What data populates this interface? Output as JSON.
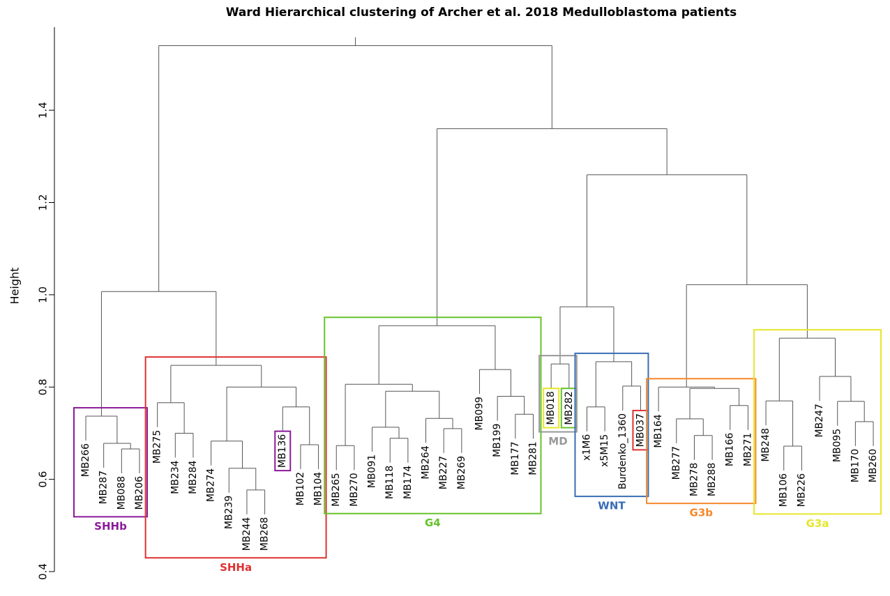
{
  "chart_data": {
    "type": "dendrogram",
    "title": "Ward Hierarchical clustering of Archer et al. 2018 Medulloblastoma patients",
    "y_label": "Height",
    "ylim": [
      0.4,
      1.58
    ],
    "yticks": [
      0.4,
      0.6,
      0.8,
      {
        "value": 1,
        "label": "1.0"
      },
      1.2,
      1.4
    ],
    "leaves": [
      "MB266",
      "MB287",
      "MB088",
      "MB206",
      "MB275",
      "MB234",
      "MB284",
      "MB274",
      "MB239",
      "MB244",
      "MB268",
      "MB136",
      "MB102",
      "MB104",
      "MB265",
      "MB270",
      "MB091",
      "MB118",
      "MB174",
      "MB264",
      "MB227",
      "MB269",
      "MB099",
      "MB199",
      "MB177",
      "MB281",
      "MB018",
      "MB282",
      "x1M6",
      "x5M15",
      "Burdenko_1360",
      "MB037",
      "MB164",
      "MB277",
      "MB278",
      "MB288",
      "MB166",
      "MB271",
      "MB248",
      "MB106",
      "MB226",
      "MB247",
      "MB095",
      "MB170",
      "MB260"
    ],
    "tree": {
      "height": 1.54,
      "children": [
        {
          "height": 1.007,
          "children": [
            {
              "height": 0.737,
              "children": [
                0,
                {
                  "height": 0.678,
                  "children": [
                    1,
                    {
                      "height": 0.666,
                      "children": [
                        2,
                        3
                      ]
                    }
                  ]
                }
              ]
            },
            {
              "height": 0.847,
              "children": [
                {
                  "height": 0.766,
                  "children": [
                    4,
                    {
                      "height": 0.7,
                      "children": [
                        5,
                        6
                      ]
                    }
                  ]
                },
                {
                  "height": 0.8,
                  "children": [
                    {
                      "height": 0.683,
                      "children": [
                        7,
                        {
                          "height": 0.624,
                          "children": [
                            8,
                            {
                              "height": 0.577,
                              "children": [
                                9,
                                10
                              ]
                            }
                          ]
                        }
                      ]
                    },
                    {
                      "height": 0.757,
                      "children": [
                        11,
                        {
                          "height": 0.675,
                          "children": [
                            12,
                            13
                          ]
                        }
                      ]
                    }
                  ]
                }
              ]
            }
          ]
        },
        {
          "height": 1.36,
          "children": [
            {
              "height": 0.933,
              "children": [
                {
                  "height": 0.806,
                  "children": [
                    {
                      "height": 0.673,
                      "children": [
                        14,
                        15
                      ]
                    },
                    {
                      "height": 0.791,
                      "children": [
                        {
                          "height": 0.713,
                          "children": [
                            16,
                            {
                              "height": 0.689,
                              "children": [
                                17,
                                18
                              ]
                            }
                          ]
                        },
                        {
                          "height": 0.732,
                          "children": [
                            19,
                            {
                              "height": 0.71,
                              "children": [
                                20,
                                21
                              ]
                            }
                          ]
                        }
                      ]
                    }
                  ]
                },
                {
                  "height": 0.838,
                  "children": [
                    22,
                    {
                      "height": 0.78,
                      "children": [
                        23,
                        {
                          "height": 0.741,
                          "children": [
                            24,
                            25
                          ]
                        }
                      ]
                    }
                  ]
                }
              ]
            },
            {
              "height": 1.26,
              "children": [
                {
                  "height": 0.974,
                  "children": [
                    {
                      "height": 0.85,
                      "children": [
                        26,
                        27
                      ]
                    },
                    {
                      "height": 0.855,
                      "children": [
                        {
                          "height": 0.757,
                          "children": [
                            28,
                            29
                          ]
                        },
                        {
                          "height": 0.802,
                          "children": [
                            30,
                            31
                          ]
                        }
                      ]
                    }
                  ]
                },
                {
                  "height": 1.022,
                  "children": [
                    {
                      "height": 0.8,
                      "children": [
                        32,
                        {
                          "height": 0.797,
                          "children": [
                            {
                              "height": 0.731,
                              "children": [
                                33,
                                {
                                  "height": 0.695,
                                  "children": [
                                    34,
                                    35
                                  ]
                                }
                              ]
                            },
                            {
                              "height": 0.76,
                              "children": [
                                36,
                                37
                              ]
                            }
                          ]
                        }
                      ]
                    },
                    {
                      "height": 0.906,
                      "children": [
                        {
                          "height": 0.77,
                          "children": [
                            38,
                            {
                              "height": 0.672,
                              "children": [
                                39,
                                40
                              ]
                            }
                          ]
                        },
                        {
                          "height": 0.823,
                          "children": [
                            41,
                            {
                              "height": 0.769,
                              "children": [
                                42,
                                {
                                  "height": 0.725,
                                  "children": [
                                    43,
                                    44
                                  ]
                                }
                              ]
                            }
                          ]
                        }
                      ]
                    }
                  ]
                }
              ]
            }
          ]
        }
      ]
    },
    "groups": [
      {
        "label": "SHHb",
        "color": "#8b1a9a",
        "first": 0,
        "last": 3
      },
      {
        "label": "SHHa",
        "color": "#e03030",
        "first": 4,
        "last": 13
      },
      {
        "label": "G4",
        "color": "#66c22a",
        "first": 14,
        "last": 25
      },
      {
        "label": "MD",
        "color": "#999999",
        "first": 26,
        "last": 27
      },
      {
        "label": "WNT",
        "color": "#3a6db5",
        "first": 28,
        "last": 31
      },
      {
        "label": "G3b",
        "color": "#f5882a",
        "first": 32,
        "last": 37
      },
      {
        "label": "G3a",
        "color": "#e6e62a",
        "first": 38,
        "last": 44
      }
    ],
    "highlights": [
      {
        "leaf": 11,
        "color": "#8b1a9a"
      },
      {
        "leaf": 26,
        "color": "#e6e62a"
      },
      {
        "leaf": 27,
        "color": "#66c22a"
      },
      {
        "leaf": 31,
        "color": "#e03030"
      }
    ]
  }
}
